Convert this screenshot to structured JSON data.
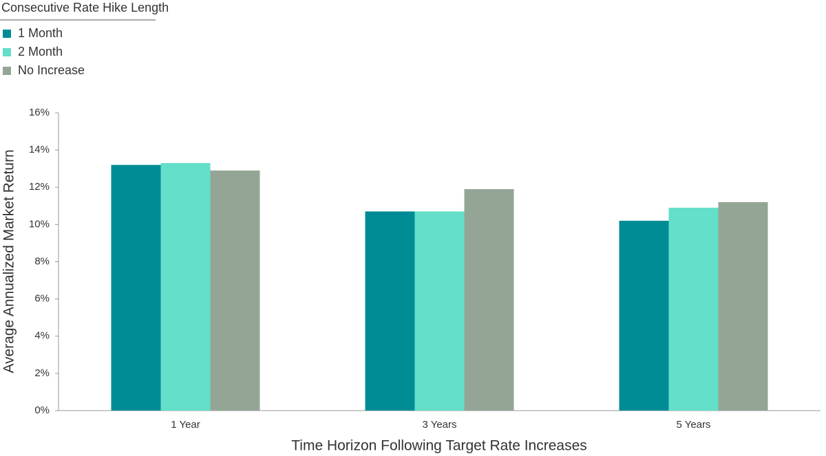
{
  "chart_data": {
    "type": "bar",
    "legend_title": "Consecutive Rate Hike Length",
    "x_label": "Time Horizon Following Target Rate Increases",
    "y_label": "Average Annualized Market Return",
    "categories": [
      "1 Year",
      "3 Years",
      "5 Years"
    ],
    "series": [
      {
        "name": "1 Month",
        "color": "#008c95",
        "values": [
          13.2,
          10.7,
          10.2
        ]
      },
      {
        "name": "2 Month",
        "color": "#64dfc9",
        "values": [
          13.3,
          10.7,
          10.9
        ]
      },
      {
        "name": "No Increase",
        "color": "#94a595",
        "values": [
          12.9,
          11.9,
          11.2
        ]
      }
    ],
    "ylim": [
      0,
      16
    ],
    "yticks": [
      {
        "value": 0,
        "label": "0%"
      },
      {
        "value": 2,
        "label": "2%"
      },
      {
        "value": 4,
        "label": "4%"
      },
      {
        "value": 6,
        "label": "6%"
      },
      {
        "value": 8,
        "label": "8%"
      },
      {
        "value": 10,
        "label": "10%"
      },
      {
        "value": 12,
        "label": "12%"
      },
      {
        "value": 14,
        "label": "14%"
      },
      {
        "value": 16,
        "label": "16%"
      }
    ],
    "grid": false,
    "legend_position": "top-left"
  }
}
